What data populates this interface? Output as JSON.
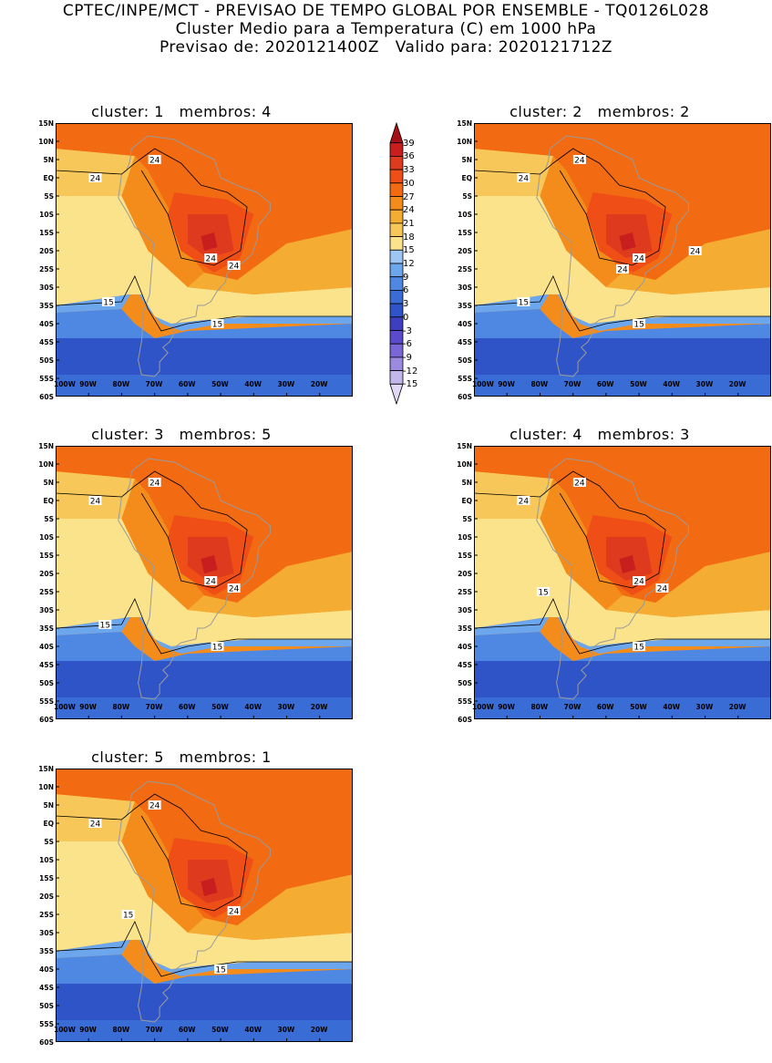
{
  "header": {
    "line1": "CPTEC/INPE/MCT - PREVISAO DE TEMPO GLOBAL POR ENSEMBLE - TQ0126L028",
    "line2": "Cluster Medio para a Temperatura (C) em 1000 hPa",
    "line3": "Previsao de: 2020121400Z   Valido para: 2020121712Z"
  },
  "axes": {
    "lat_labels": [
      "15N",
      "10N",
      "5N",
      "EQ",
      "5S",
      "10S",
      "15S",
      "20S",
      "25S",
      "30S",
      "35S",
      "40S",
      "45S",
      "50S",
      "55S",
      "60S"
    ],
    "lon_labels": [
      "100W",
      "90W",
      "80W",
      "70W",
      "60W",
      "50W",
      "40W",
      "30W",
      "20W"
    ],
    "lat_range": [
      -60,
      15
    ],
    "lon_range": [
      -100,
      -10
    ]
  },
  "clusters": [
    {
      "title": "cluster: 1   membros: 4",
      "contour_labels": [
        "24",
        "24",
        "24",
        "24",
        "15",
        "15"
      ]
    },
    {
      "title": "cluster: 2   membros: 2",
      "contour_labels": [
        "24",
        "24",
        "24",
        "24",
        "24",
        "15",
        "15"
      ]
    },
    {
      "title": "cluster: 3   membros: 5",
      "contour_labels": [
        "24",
        "24",
        "24",
        "24",
        "15",
        "15"
      ]
    },
    {
      "title": "cluster: 4   membros: 3",
      "contour_labels": [
        "24",
        "24",
        "24",
        "24",
        "15",
        "15"
      ]
    },
    {
      "title": "cluster: 5   membros: 1",
      "contour_labels": [
        "24",
        "24",
        "24",
        "15",
        "15"
      ]
    }
  ],
  "colorbar": {
    "labels": [
      "39",
      "36",
      "33",
      "30",
      "27",
      "24",
      "21",
      "18",
      "15",
      "12",
      "9",
      "6",
      "3",
      "0",
      "-3",
      "-6",
      "-9",
      "-12",
      "-15"
    ],
    "colors": [
      "#a50f15",
      "#c81e1e",
      "#de3a1e",
      "#ef4f16",
      "#f26a12",
      "#f48c1c",
      "#f5ac32",
      "#f8c75a",
      "#fbe38c",
      "#9ec6f2",
      "#6ca6ec",
      "#4f88e2",
      "#3a6cd6",
      "#2f54c8",
      "#3e3ec0",
      "#5a4acc",
      "#7a66d6",
      "#9c8ae0",
      "#c2b6ea",
      "#e0d8f4"
    ],
    "units": "C"
  },
  "palette": {
    "land_border": "#9a9a9a",
    "contour": "#000000"
  }
}
